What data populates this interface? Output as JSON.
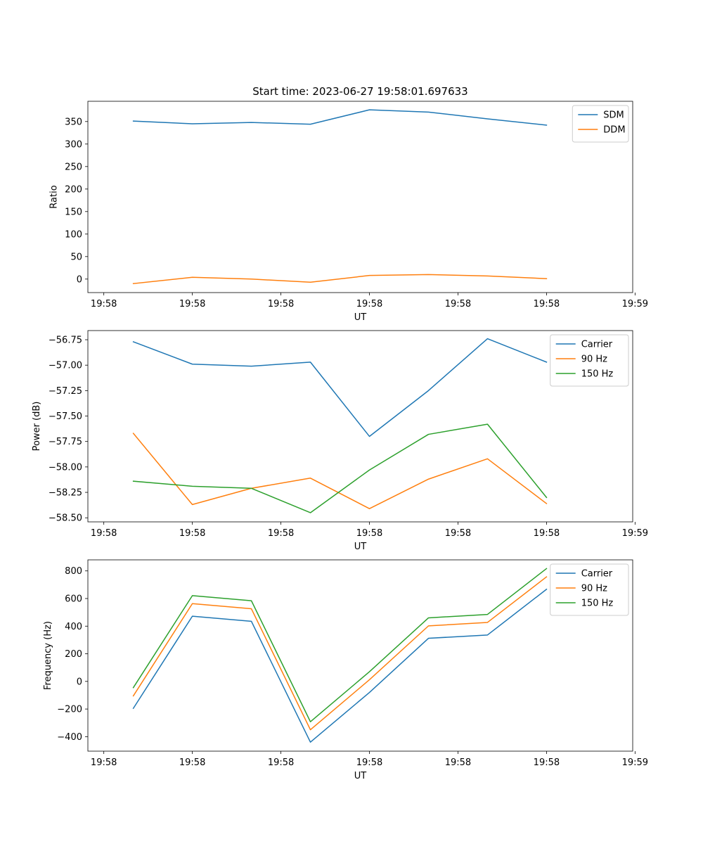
{
  "chart_data": [
    {
      "type": "line",
      "title": "Start time: 2023-06-27 19:58:01.697633",
      "xlabel": "UT",
      "ylabel": "Ratio",
      "x": [
        1.0,
        2.0,
        3.0,
        4.0,
        5.0,
        6.0,
        7.0,
        8.0
      ],
      "xlim": [
        0.23,
        9.46
      ],
      "x_ticks": [
        0.5,
        2.0,
        3.5,
        5.0,
        6.5,
        8.0,
        9.5
      ],
      "x_tick_labels": [
        "19:58",
        "19:58",
        "19:58",
        "19:58",
        "19:58",
        "19:58",
        "19:59"
      ],
      "ylim": [
        -30,
        395
      ],
      "y_ticks": [
        0,
        50,
        100,
        150,
        200,
        250,
        300,
        350
      ],
      "y_tick_labels": [
        "0",
        "50",
        "100",
        "150",
        "200",
        "250",
        "300",
        "350"
      ],
      "legend": "top-right",
      "grid": false,
      "series": [
        {
          "name": "SDM",
          "color": "#1f77b4",
          "values": [
            351,
            345,
            348,
            344,
            376,
            371,
            356,
            342
          ]
        },
        {
          "name": "DDM",
          "color": "#ff7f0e",
          "values": [
            -10,
            4,
            0,
            -7,
            8,
            10,
            7,
            1
          ]
        }
      ]
    },
    {
      "type": "line",
      "xlabel": "UT",
      "ylabel": "Power (dB)",
      "x": [
        1.0,
        2.0,
        3.0,
        4.0,
        5.0,
        6.0,
        7.0,
        8.0
      ],
      "xlim": [
        0.23,
        9.46
      ],
      "x_ticks": [
        0.5,
        2.0,
        3.5,
        5.0,
        6.5,
        8.0,
        9.5
      ],
      "x_tick_labels": [
        "19:58",
        "19:58",
        "19:58",
        "19:58",
        "19:58",
        "19:58",
        "19:59"
      ],
      "ylim": [
        -58.54,
        -56.66
      ],
      "y_ticks": [
        -58.5,
        -58.25,
        -58.0,
        -57.75,
        -57.5,
        -57.25,
        -57.0,
        -56.75
      ],
      "y_tick_labels": [
        "−58.50",
        "−58.25",
        "−58.00",
        "−57.75",
        "−57.50",
        "−57.25",
        "−57.00",
        "−56.75"
      ],
      "legend": "top-right",
      "grid": false,
      "series": [
        {
          "name": "Carrier",
          "color": "#1f77b4",
          "values": [
            -56.77,
            -56.99,
            -57.01,
            -56.97,
            -57.7,
            -57.25,
            -56.74,
            -56.97
          ]
        },
        {
          "name": "90 Hz",
          "color": "#ff7f0e",
          "values": [
            -57.67,
            -58.37,
            -58.21,
            -58.11,
            -58.41,
            -58.12,
            -57.92,
            -58.36
          ]
        },
        {
          "name": "150 Hz",
          "color": "#2ca02c",
          "values": [
            -58.14,
            -58.19,
            -58.21,
            -58.45,
            -58.03,
            -57.68,
            -57.58,
            -58.3
          ]
        }
      ]
    },
    {
      "type": "line",
      "xlabel": "UT",
      "ylabel": "Frequency (Hz)",
      "x": [
        1.0,
        2.0,
        3.0,
        4.0,
        5.0,
        6.0,
        7.0,
        8.0
      ],
      "xlim": [
        0.23,
        9.46
      ],
      "x_ticks": [
        0.5,
        2.0,
        3.5,
        5.0,
        6.5,
        8.0,
        9.5
      ],
      "x_tick_labels": [
        "19:58",
        "19:58",
        "19:58",
        "19:58",
        "19:58",
        "19:58",
        "19:59"
      ],
      "ylim": [
        -505,
        880
      ],
      "y_ticks": [
        -400,
        -200,
        0,
        200,
        400,
        600,
        800
      ],
      "y_tick_labels": [
        "−400",
        "−200",
        "0",
        "200",
        "400",
        "600",
        "800"
      ],
      "legend": "top-right",
      "grid": false,
      "series": [
        {
          "name": "Carrier",
          "color": "#1f77b4",
          "values": [
            -195,
            472,
            435,
            -440,
            -80,
            312,
            336,
            667
          ]
        },
        {
          "name": "90 Hz",
          "color": "#ff7f0e",
          "values": [
            -105,
            563,
            526,
            -350,
            12,
            402,
            427,
            757
          ]
        },
        {
          "name": "150 Hz",
          "color": "#2ca02c",
          "values": [
            -45,
            621,
            584,
            -292,
            70,
            460,
            485,
            817
          ]
        }
      ]
    }
  ]
}
